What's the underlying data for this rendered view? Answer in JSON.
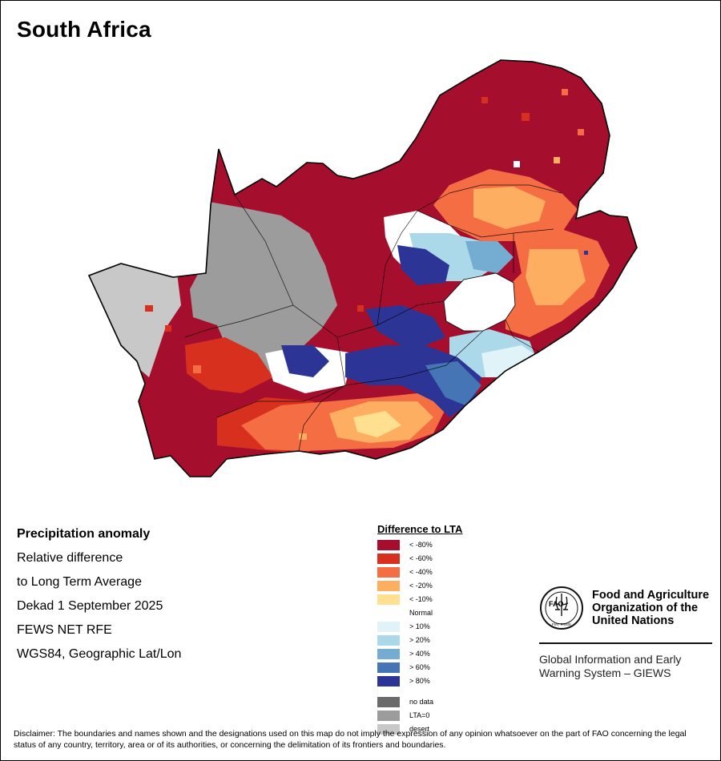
{
  "title": "South Africa",
  "info": {
    "heading": "Precipitation anomaly",
    "line1": "Relative difference",
    "line2": "to Long Term Average",
    "line3": "Dekad 1 September 2025",
    "line4": "FEWS NET RFE",
    "line5": "WGS84, Geographic Lat/Lon"
  },
  "legend": {
    "title": "Difference to LTA",
    "items": [
      {
        "label": "< -80%",
        "color": "#a50f2d"
      },
      {
        "label": "< -60%",
        "color": "#d7301f"
      },
      {
        "label": "< -40%",
        "color": "#f46d43"
      },
      {
        "label": "< -20%",
        "color": "#fdae61"
      },
      {
        "label": "< -10%",
        "color": "#fee090"
      },
      {
        "label": "Normal",
        "color": "#ffffff"
      },
      {
        "label": "> 10%",
        "color": "#e0f3f8"
      },
      {
        "label": "> 20%",
        "color": "#abd9e9"
      },
      {
        "label": "> 40%",
        "color": "#74add1"
      },
      {
        "label": "> 60%",
        "color": "#4575b4"
      },
      {
        "label": "> 80%",
        "color": "#2c3595"
      },
      {
        "label": "no data",
        "color": "#6b6b6b"
      },
      {
        "label": "LTA=0",
        "color": "#9c9c9c"
      },
      {
        "label": "desert",
        "color": "#c8c8c8"
      }
    ]
  },
  "organization": {
    "name_line1": "Food and Agriculture",
    "name_line2": "Organization of the",
    "name_line3": "United Nations",
    "logo_text": "FAO",
    "logo_motto": "FIAT PANIS",
    "system_line1": "Global Information and Early",
    "system_line2": "Warning System – GIEWS"
  },
  "disclaimer": "Disclaimer: The boundaries and names shown and the designations used on this map do not imply the expression of any opinion whatsoever on the part of FAO concerning the legal status of any country, territory, area or of its authorities, or concerning the delimitation of its frontiers and boundaries."
}
